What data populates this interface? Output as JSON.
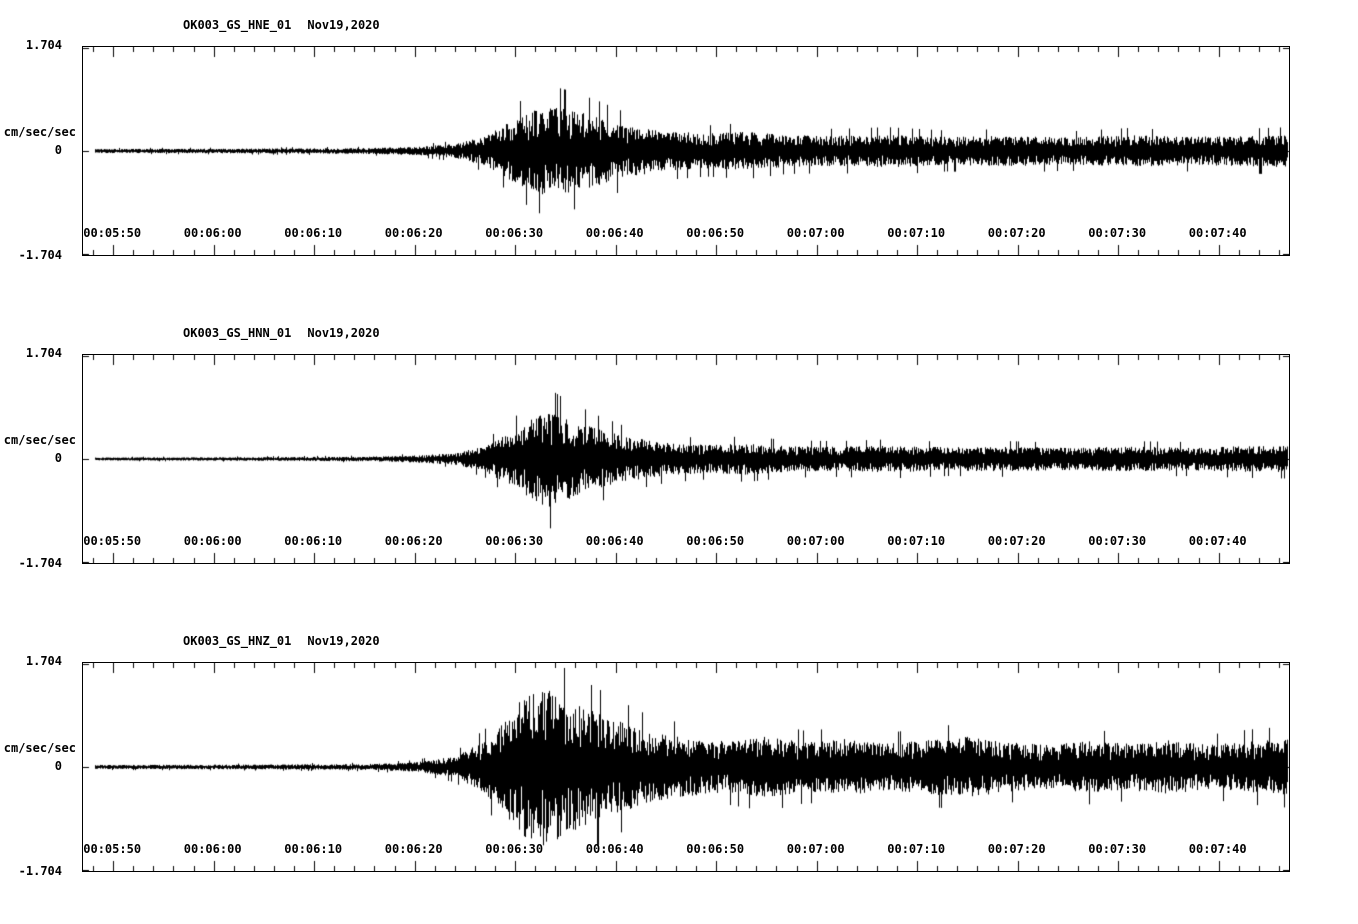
{
  "colors": {
    "background": "#ffffff",
    "trace": "#000000",
    "axis": "#000000"
  },
  "axis": {
    "x_range_s": [
      0,
      120
    ],
    "x_minor_step_s": 2,
    "x_tick_times_s": [
      3,
      13,
      23,
      33,
      43,
      53,
      63,
      73,
      83,
      93,
      103,
      113
    ],
    "grid": "off",
    "legend": "none"
  },
  "chart_data": [
    {
      "type": "line",
      "title": "OK003_GS_HNE_01",
      "date_label": "Nov19,2020",
      "ylabel": "cm/sec/sec",
      "ylim": [
        -1.704,
        1.704
      ],
      "y_tick_labels": [
        "1.704",
        "0",
        "-1.704"
      ],
      "x_tick_labels": [
        "00:05:50",
        "00:06:00",
        "00:06:10",
        "00:06:20",
        "00:06:30",
        "00:06:40",
        "00:06:50",
        "00:07:00",
        "00:07:10",
        "00:07:20",
        "00:07:30",
        "00:07:40"
      ],
      "trace_start_s": 1.2,
      "seed": 1337,
      "envelope": {
        "t_s": [
          0,
          15,
          28,
          33,
          37,
          40,
          43,
          46,
          48,
          51,
          54,
          58,
          62,
          66,
          70,
          75,
          80,
          86,
          92,
          98,
          104,
          110,
          115,
          120
        ],
        "amplitude": [
          0.035,
          0.04,
          0.05,
          0.07,
          0.12,
          0.25,
          0.55,
          0.78,
          0.72,
          0.6,
          0.45,
          0.34,
          0.3,
          0.33,
          0.27,
          0.26,
          0.28,
          0.24,
          0.26,
          0.23,
          0.27,
          0.24,
          0.26,
          0.28
        ]
      }
    },
    {
      "type": "line",
      "title": "OK003_GS_HNN_01",
      "date_label": "Nov19,2020",
      "ylabel": "cm/sec/sec",
      "ylim": [
        -1.704,
        1.704
      ],
      "y_tick_labels": [
        "1.704",
        "0",
        "-1.704"
      ],
      "x_tick_labels": [
        "00:05:50",
        "00:06:00",
        "00:06:10",
        "00:06:20",
        "00:06:30",
        "00:06:40",
        "00:06:50",
        "00:07:00",
        "00:07:10",
        "00:07:20",
        "00:07:30",
        "00:07:40"
      ],
      "trace_start_s": 1.2,
      "seed": 4242,
      "envelope": {
        "t_s": [
          0,
          15,
          28,
          33,
          37,
          40,
          43,
          46,
          48,
          51,
          54,
          58,
          62,
          66,
          70,
          75,
          80,
          86,
          92,
          98,
          104,
          110,
          115,
          120
        ],
        "amplitude": [
          0.025,
          0.03,
          0.04,
          0.06,
          0.1,
          0.22,
          0.5,
          0.85,
          0.7,
          0.52,
          0.38,
          0.28,
          0.24,
          0.27,
          0.22,
          0.21,
          0.23,
          0.2,
          0.21,
          0.19,
          0.21,
          0.2,
          0.22,
          0.23
        ]
      }
    },
    {
      "type": "line",
      "title": "OK003_GS_HNZ_01",
      "date_label": "Nov19,2020",
      "ylabel": "cm/sec/sec",
      "ylim": [
        -1.704,
        1.704
      ],
      "y_tick_labels": [
        "1.704",
        "0",
        "-1.704"
      ],
      "x_tick_labels": [
        "00:05:50",
        "00:06:00",
        "00:06:10",
        "00:06:20",
        "00:06:30",
        "00:06:40",
        "00:06:50",
        "00:07:00",
        "00:07:10",
        "00:07:20",
        "00:07:30",
        "00:07:40"
      ],
      "trace_start_s": 1.2,
      "seed": 9001,
      "envelope": {
        "t_s": [
          0,
          15,
          28,
          33,
          37,
          40,
          42,
          44,
          46,
          48,
          50,
          53,
          56,
          60,
          64,
          68,
          72,
          76,
          80,
          84,
          88,
          92,
          96,
          100,
          104,
          108,
          112,
          116,
          120
        ],
        "amplitude": [
          0.035,
          0.04,
          0.05,
          0.08,
          0.18,
          0.45,
          0.85,
          1.25,
          1.35,
          1.15,
          1.0,
          0.8,
          0.62,
          0.5,
          0.44,
          0.52,
          0.42,
          0.48,
          0.4,
          0.46,
          0.52,
          0.42,
          0.38,
          0.44,
          0.4,
          0.46,
          0.38,
          0.44,
          0.48
        ]
      }
    }
  ]
}
